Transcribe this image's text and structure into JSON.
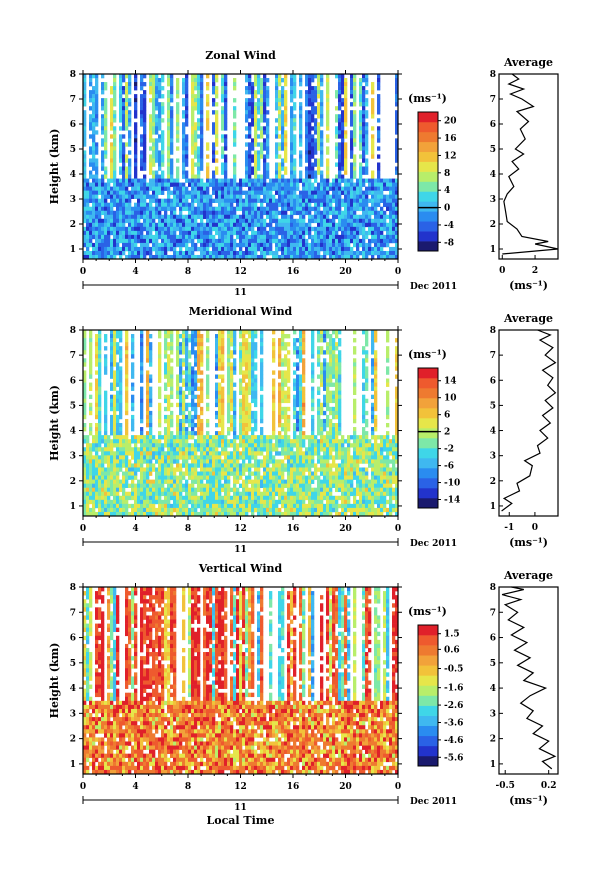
{
  "chart_data": [
    {
      "type": "heatmap",
      "title": "Zonal Wind",
      "ylabel": "Height (km)",
      "xticks": [
        "0",
        "4",
        "8",
        "12",
        "16",
        "20",
        "0"
      ],
      "xlim": [
        0,
        24
      ],
      "yticks": [
        "1",
        "2",
        "3",
        "4",
        "5",
        "6",
        "7",
        "8"
      ],
      "ylim": [
        0.6,
        8
      ],
      "date_label": "11",
      "month_label": "Dec 2011",
      "colorbar": {
        "unit": "(ms⁻¹)",
        "ticks": [
          "20",
          "16",
          "12",
          "8",
          "4",
          "0",
          "-4",
          "-8"
        ],
        "min": -10,
        "max": 22,
        "contour": 0
      },
      "average": {
        "title": "Average",
        "xlabel": "(ms⁻¹)",
        "xticks": [
          "0",
          "2"
        ],
        "xlim": [
          -0.2,
          3.4
        ],
        "yticks": [
          "1",
          "2",
          "3",
          "4",
          "5",
          "6",
          "7",
          "8"
        ],
        "profile": [
          [
            0.0,
            0.8
          ],
          [
            3.4,
            1.0
          ],
          [
            2.0,
            1.2
          ],
          [
            2.8,
            1.3
          ],
          [
            1.2,
            1.5
          ],
          [
            0.9,
            1.8
          ],
          [
            0.3,
            2.1
          ],
          [
            0.2,
            2.5
          ],
          [
            0.1,
            2.9
          ],
          [
            0.3,
            3.2
          ],
          [
            0.7,
            3.5
          ],
          [
            0.4,
            3.9
          ],
          [
            1.0,
            4.2
          ],
          [
            0.6,
            4.5
          ],
          [
            1.3,
            4.8
          ],
          [
            0.8,
            5.0
          ],
          [
            1.4,
            5.4
          ],
          [
            1.1,
            5.8
          ],
          [
            1.6,
            6.1
          ],
          [
            0.9,
            6.5
          ],
          [
            1.9,
            6.7
          ],
          [
            1.2,
            7.0
          ],
          [
            0.5,
            7.2
          ],
          [
            1.3,
            7.4
          ],
          [
            0.4,
            7.6
          ],
          [
            1.0,
            7.8
          ],
          [
            0.6,
            8.0
          ]
        ]
      }
    },
    {
      "type": "heatmap",
      "title": "Meridional Wind",
      "ylabel": "Height (km)",
      "xticks": [
        "0",
        "4",
        "8",
        "12",
        "16",
        "20",
        "0"
      ],
      "xlim": [
        0,
        24
      ],
      "yticks": [
        "1",
        "2",
        "3",
        "4",
        "5",
        "6",
        "7",
        "8"
      ],
      "ylim": [
        0.6,
        8
      ],
      "date_label": "11",
      "month_label": "Dec 2011",
      "colorbar": {
        "unit": "(ms⁻¹)",
        "ticks": [
          "14",
          "10",
          "6",
          "2",
          "-2",
          "-6",
          "-10",
          "-14"
        ],
        "min": -16,
        "max": 17,
        "contour": 2
      },
      "average": {
        "title": "Average",
        "xlabel": "(ms⁻¹)",
        "xticks": [
          "-1",
          "0"
        ],
        "xlim": [
          -1.4,
          0.9
        ],
        "yticks": [
          "1",
          "2",
          "3",
          "4",
          "5",
          "6",
          "7",
          "8"
        ],
        "profile": [
          [
            -1.3,
            0.8
          ],
          [
            -0.9,
            1.1
          ],
          [
            -1.2,
            1.3
          ],
          [
            -0.6,
            1.6
          ],
          [
            -0.7,
            1.9
          ],
          [
            -0.2,
            2.2
          ],
          [
            -0.1,
            2.6
          ],
          [
            -0.4,
            2.8
          ],
          [
            0.2,
            3.1
          ],
          [
            0.1,
            3.4
          ],
          [
            0.5,
            3.7
          ],
          [
            0.2,
            4.0
          ],
          [
            0.6,
            4.3
          ],
          [
            0.3,
            4.6
          ],
          [
            0.7,
            4.9
          ],
          [
            0.4,
            5.2
          ],
          [
            0.8,
            5.5
          ],
          [
            0.5,
            5.8
          ],
          [
            0.7,
            6.1
          ],
          [
            0.3,
            6.4
          ],
          [
            0.8,
            6.7
          ],
          [
            0.4,
            7.0
          ],
          [
            0.7,
            7.3
          ],
          [
            0.2,
            7.6
          ],
          [
            0.6,
            7.8
          ],
          [
            0.1,
            8.0
          ]
        ]
      }
    },
    {
      "type": "heatmap",
      "title": "Vertical Wind",
      "ylabel": "Height (km)",
      "xlabel": "Local Time",
      "xticks": [
        "0",
        "4",
        "8",
        "12",
        "16",
        "20",
        "0"
      ],
      "xlim": [
        0,
        24
      ],
      "yticks": [
        "1",
        "2",
        "3",
        "4",
        "5",
        "6",
        "7",
        "8"
      ],
      "ylim": [
        0.6,
        8
      ],
      "date_label": "11",
      "month_label": "Dec 2011",
      "colorbar": {
        "unit": "(ms⁻¹)",
        "ticks": [
          "1.5",
          "0.6",
          "-0.5",
          "-1.6",
          "-2.6",
          "-3.6",
          "-4.6",
          "-5.6"
        ],
        "min": -6.1,
        "max": 2.0
      },
      "average": {
        "title": "Average",
        "xlabel": "(ms⁻¹)",
        "xticks": [
          "-0.5",
          "0.2"
        ],
        "xlim": [
          -0.6,
          0.35
        ],
        "yticks": [
          "1",
          "2",
          "3",
          "4",
          "5",
          "6",
          "7",
          "8"
        ],
        "profile": [
          [
            0.25,
            0.8
          ],
          [
            0.1,
            1.1
          ],
          [
            0.3,
            1.3
          ],
          [
            0.05,
            1.6
          ],
          [
            0.2,
            1.9
          ],
          [
            -0.05,
            2.2
          ],
          [
            0.1,
            2.5
          ],
          [
            -0.15,
            2.8
          ],
          [
            -0.05,
            3.1
          ],
          [
            -0.25,
            3.4
          ],
          [
            -0.1,
            3.7
          ],
          [
            0.15,
            4.0
          ],
          [
            -0.2,
            4.3
          ],
          [
            -0.05,
            4.6
          ],
          [
            -0.3,
            4.9
          ],
          [
            -0.1,
            5.2
          ],
          [
            -0.35,
            5.5
          ],
          [
            -0.15,
            5.8
          ],
          [
            -0.4,
            6.1
          ],
          [
            -0.2,
            6.4
          ],
          [
            -0.45,
            6.7
          ],
          [
            -0.3,
            7.0
          ],
          [
            -0.5,
            7.3
          ],
          [
            -0.25,
            7.5
          ],
          [
            -0.55,
            7.7
          ],
          [
            -0.2,
            7.9
          ],
          [
            -0.4,
            8.0
          ]
        ]
      }
    }
  ]
}
